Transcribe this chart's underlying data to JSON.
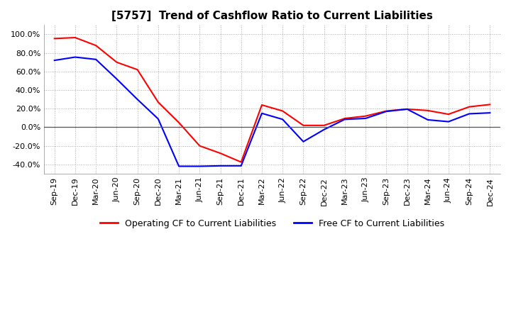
{
  "title": "[5757]  Trend of Cashflow Ratio to Current Liabilities",
  "x_labels": [
    "Sep-19",
    "Dec-19",
    "Mar-20",
    "Jun-20",
    "Sep-20",
    "Dec-20",
    "Mar-21",
    "Jun-21",
    "Sep-21",
    "Dec-21",
    "Mar-22",
    "Jun-22",
    "Sep-22",
    "Dec-22",
    "Mar-23",
    "Jun-23",
    "Sep-23",
    "Dec-23",
    "Mar-24",
    "Jun-24",
    "Sep-24",
    "Dec-24"
  ],
  "operating_cf": [
    0.955,
    0.965,
    0.88,
    0.7,
    0.62,
    0.27,
    0.05,
    -0.2,
    -0.28,
    -0.375,
    0.24,
    0.175,
    0.02,
    0.02,
    0.095,
    0.12,
    0.175,
    0.195,
    0.18,
    0.14,
    0.22,
    0.245
  ],
  "free_cf": [
    0.72,
    0.755,
    0.73,
    0.52,
    0.3,
    0.09,
    -0.42,
    -0.42,
    -0.415,
    -0.415,
    0.15,
    0.085,
    -0.155,
    -0.025,
    0.085,
    0.095,
    0.17,
    0.195,
    0.08,
    0.06,
    0.145,
    0.155
  ],
  "operating_color": "#ff0000",
  "free_color": "#0000ff",
  "ylim_min": -0.5,
  "ylim_max": 1.1,
  "yticks": [
    -0.4,
    -0.2,
    0.0,
    0.2,
    0.4,
    0.6,
    0.8,
    1.0
  ],
  "background_color": "#ffffff",
  "grid_color": "#aaaaaa",
  "legend_op": "Operating CF to Current Liabilities",
  "legend_free": "Free CF to Current Liabilities",
  "title_fontsize": 11,
  "tick_fontsize": 8,
  "legend_fontsize": 9
}
